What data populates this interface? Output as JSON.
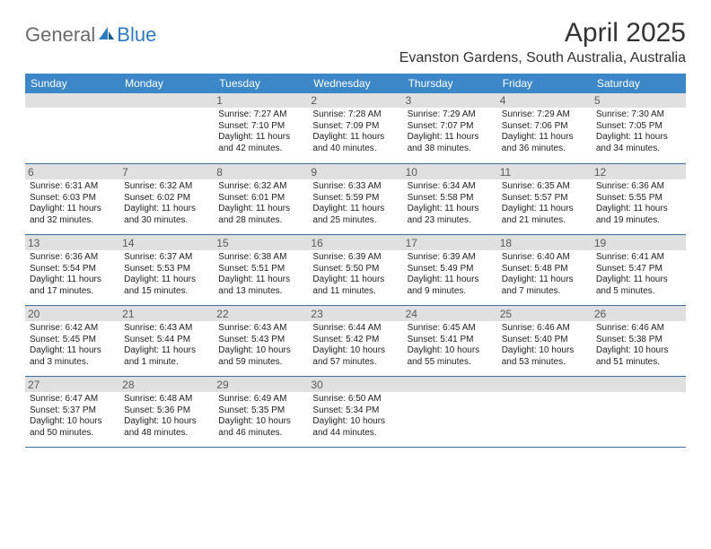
{
  "logo": {
    "general": "General",
    "blue": "Blue"
  },
  "title": "April 2025",
  "location": "Evanston Gardens, South Australia, Australia",
  "colors": {
    "header_bg": "#3b87c8",
    "header_text": "#ffffff",
    "row_border": "#3b6fa0",
    "daynum_shade": "#e0e0e0",
    "logo_gray": "#6b6b6b",
    "logo_blue": "#2f7bbf"
  },
  "day_headers": [
    "Sunday",
    "Monday",
    "Tuesday",
    "Wednesday",
    "Thursday",
    "Friday",
    "Saturday"
  ],
  "weeks": [
    [
      {
        "empty": true
      },
      {
        "empty": true
      },
      {
        "num": "1",
        "sunrise": "Sunrise: 7:27 AM",
        "sunset": "Sunset: 7:10 PM",
        "daylight": "Daylight: 11 hours and 42 minutes."
      },
      {
        "num": "2",
        "sunrise": "Sunrise: 7:28 AM",
        "sunset": "Sunset: 7:09 PM",
        "daylight": "Daylight: 11 hours and 40 minutes."
      },
      {
        "num": "3",
        "sunrise": "Sunrise: 7:29 AM",
        "sunset": "Sunset: 7:07 PM",
        "daylight": "Daylight: 11 hours and 38 minutes."
      },
      {
        "num": "4",
        "sunrise": "Sunrise: 7:29 AM",
        "sunset": "Sunset: 7:06 PM",
        "daylight": "Daylight: 11 hours and 36 minutes."
      },
      {
        "num": "5",
        "sunrise": "Sunrise: 7:30 AM",
        "sunset": "Sunset: 7:05 PM",
        "daylight": "Daylight: 11 hours and 34 minutes."
      }
    ],
    [
      {
        "num": "6",
        "sunrise": "Sunrise: 6:31 AM",
        "sunset": "Sunset: 6:03 PM",
        "daylight": "Daylight: 11 hours and 32 minutes."
      },
      {
        "num": "7",
        "sunrise": "Sunrise: 6:32 AM",
        "sunset": "Sunset: 6:02 PM",
        "daylight": "Daylight: 11 hours and 30 minutes."
      },
      {
        "num": "8",
        "sunrise": "Sunrise: 6:32 AM",
        "sunset": "Sunset: 6:01 PM",
        "daylight": "Daylight: 11 hours and 28 minutes."
      },
      {
        "num": "9",
        "sunrise": "Sunrise: 6:33 AM",
        "sunset": "Sunset: 5:59 PM",
        "daylight": "Daylight: 11 hours and 25 minutes."
      },
      {
        "num": "10",
        "sunrise": "Sunrise: 6:34 AM",
        "sunset": "Sunset: 5:58 PM",
        "daylight": "Daylight: 11 hours and 23 minutes."
      },
      {
        "num": "11",
        "sunrise": "Sunrise: 6:35 AM",
        "sunset": "Sunset: 5:57 PM",
        "daylight": "Daylight: 11 hours and 21 minutes."
      },
      {
        "num": "12",
        "sunrise": "Sunrise: 6:36 AM",
        "sunset": "Sunset: 5:55 PM",
        "daylight": "Daylight: 11 hours and 19 minutes."
      }
    ],
    [
      {
        "num": "13",
        "sunrise": "Sunrise: 6:36 AM",
        "sunset": "Sunset: 5:54 PM",
        "daylight": "Daylight: 11 hours and 17 minutes."
      },
      {
        "num": "14",
        "sunrise": "Sunrise: 6:37 AM",
        "sunset": "Sunset: 5:53 PM",
        "daylight": "Daylight: 11 hours and 15 minutes."
      },
      {
        "num": "15",
        "sunrise": "Sunrise: 6:38 AM",
        "sunset": "Sunset: 5:51 PM",
        "daylight": "Daylight: 11 hours and 13 minutes."
      },
      {
        "num": "16",
        "sunrise": "Sunrise: 6:39 AM",
        "sunset": "Sunset: 5:50 PM",
        "daylight": "Daylight: 11 hours and 11 minutes."
      },
      {
        "num": "17",
        "sunrise": "Sunrise: 6:39 AM",
        "sunset": "Sunset: 5:49 PM",
        "daylight": "Daylight: 11 hours and 9 minutes."
      },
      {
        "num": "18",
        "sunrise": "Sunrise: 6:40 AM",
        "sunset": "Sunset: 5:48 PM",
        "daylight": "Daylight: 11 hours and 7 minutes."
      },
      {
        "num": "19",
        "sunrise": "Sunrise: 6:41 AM",
        "sunset": "Sunset: 5:47 PM",
        "daylight": "Daylight: 11 hours and 5 minutes."
      }
    ],
    [
      {
        "num": "20",
        "sunrise": "Sunrise: 6:42 AM",
        "sunset": "Sunset: 5:45 PM",
        "daylight": "Daylight: 11 hours and 3 minutes."
      },
      {
        "num": "21",
        "sunrise": "Sunrise: 6:43 AM",
        "sunset": "Sunset: 5:44 PM",
        "daylight": "Daylight: 11 hours and 1 minute."
      },
      {
        "num": "22",
        "sunrise": "Sunrise: 6:43 AM",
        "sunset": "Sunset: 5:43 PM",
        "daylight": "Daylight: 10 hours and 59 minutes."
      },
      {
        "num": "23",
        "sunrise": "Sunrise: 6:44 AM",
        "sunset": "Sunset: 5:42 PM",
        "daylight": "Daylight: 10 hours and 57 minutes."
      },
      {
        "num": "24",
        "sunrise": "Sunrise: 6:45 AM",
        "sunset": "Sunset: 5:41 PM",
        "daylight": "Daylight: 10 hours and 55 minutes."
      },
      {
        "num": "25",
        "sunrise": "Sunrise: 6:46 AM",
        "sunset": "Sunset: 5:40 PM",
        "daylight": "Daylight: 10 hours and 53 minutes."
      },
      {
        "num": "26",
        "sunrise": "Sunrise: 6:46 AM",
        "sunset": "Sunset: 5:38 PM",
        "daylight": "Daylight: 10 hours and 51 minutes."
      }
    ],
    [
      {
        "num": "27",
        "sunrise": "Sunrise: 6:47 AM",
        "sunset": "Sunset: 5:37 PM",
        "daylight": "Daylight: 10 hours and 50 minutes."
      },
      {
        "num": "28",
        "sunrise": "Sunrise: 6:48 AM",
        "sunset": "Sunset: 5:36 PM",
        "daylight": "Daylight: 10 hours and 48 minutes."
      },
      {
        "num": "29",
        "sunrise": "Sunrise: 6:49 AM",
        "sunset": "Sunset: 5:35 PM",
        "daylight": "Daylight: 10 hours and 46 minutes."
      },
      {
        "num": "30",
        "sunrise": "Sunrise: 6:50 AM",
        "sunset": "Sunset: 5:34 PM",
        "daylight": "Daylight: 10 hours and 44 minutes."
      },
      {
        "empty": true
      },
      {
        "empty": true
      },
      {
        "empty": true
      }
    ]
  ]
}
